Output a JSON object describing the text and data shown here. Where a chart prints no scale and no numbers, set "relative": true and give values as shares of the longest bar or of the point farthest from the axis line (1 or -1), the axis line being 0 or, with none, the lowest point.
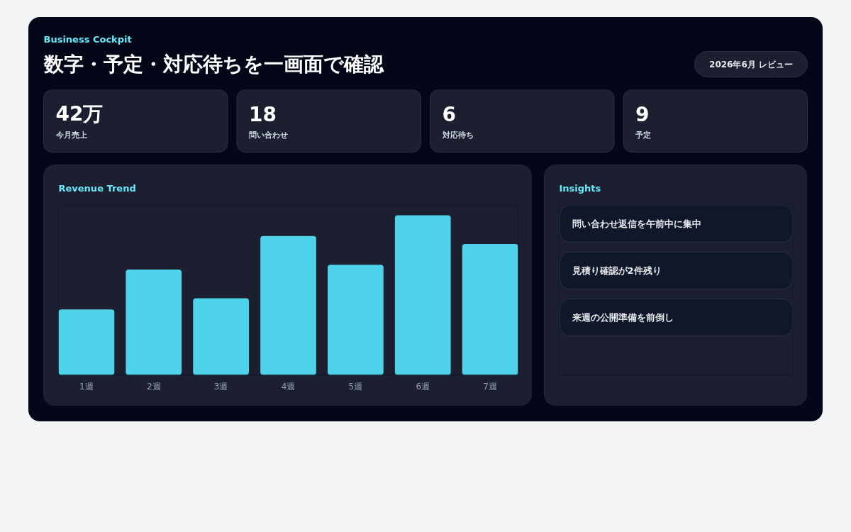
{
  "chart_data": [
    {
      "type": "other",
      "subtitle": "Business Cockpit",
      "title": "数字・予定・対応待ちを一画面で確認",
      "annotations": [
        "2026年6月 レビュー"
      ]
    },
    {
      "type": "other",
      "annotations": [
        "42万",
        "今月売上",
        "18",
        "問い合わせ",
        "6",
        "対応待ち",
        "9",
        "予定"
      ]
    },
    {
      "type": "bar",
      "title": "Revenue Trend",
      "categories": [
        "1週",
        "2週",
        "3週",
        "4週",
        "5週",
        "6週",
        "7週"
      ],
      "values": [
        0.41,
        0.66,
        0.48,
        0.87,
        0.69,
        1,
        0.82
      ],
      "relative": true,
      "color": "#4fd3ea"
    },
    {
      "type": "other",
      "title": "Insights",
      "annotations": [
        "問い合わせ返信を午前中に集中",
        "見積り確認が2件残り",
        "来週の公開準備を前倒し"
      ]
    }
  ]
}
